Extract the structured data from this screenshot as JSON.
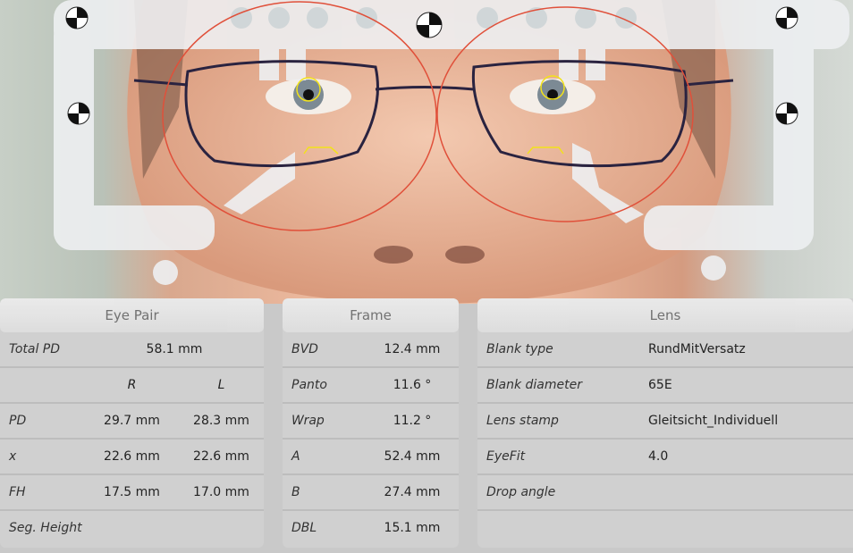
{
  "colors": {
    "measurement_ellipse": "#e0503a",
    "centering_marker": "#f2e21a",
    "panel_bg": "#d0d0d0"
  },
  "eye_pair": {
    "title": "Eye Pair",
    "total_pd_label": "Total PD",
    "total_pd": "58.1 mm",
    "col_r": "R",
    "col_l": "L",
    "rows": [
      {
        "label": "PD",
        "r": "29.7 mm",
        "l": "28.3 mm"
      },
      {
        "label": "x",
        "r": "22.6 mm",
        "l": "22.6 mm"
      },
      {
        "label": "FH",
        "r": "17.5 mm",
        "l": "17.0 mm"
      },
      {
        "label": "Seg. Height",
        "r": "",
        "l": ""
      }
    ]
  },
  "frame": {
    "title": "Frame",
    "rows": [
      {
        "label": "BVD",
        "value": "12.4 mm"
      },
      {
        "label": "Panto",
        "value": "11.6 °"
      },
      {
        "label": "Wrap",
        "value": "11.2 °"
      },
      {
        "label": "A",
        "value": "52.4 mm"
      },
      {
        "label": "B",
        "value": "27.4 mm"
      },
      {
        "label": "DBL",
        "value": "15.1 mm"
      }
    ]
  },
  "lens": {
    "title": "Lens",
    "rows": [
      {
        "label": "Blank type",
        "value": "RundMitVersatz"
      },
      {
        "label": "Blank diameter",
        "value": "65E"
      },
      {
        "label": "Lens stamp",
        "value": "Gleitsicht_Individuell"
      },
      {
        "label": "EyeFit",
        "value": "4.0"
      },
      {
        "label": "Drop angle",
        "value": ""
      },
      {
        "label": "",
        "value": ""
      }
    ]
  }
}
